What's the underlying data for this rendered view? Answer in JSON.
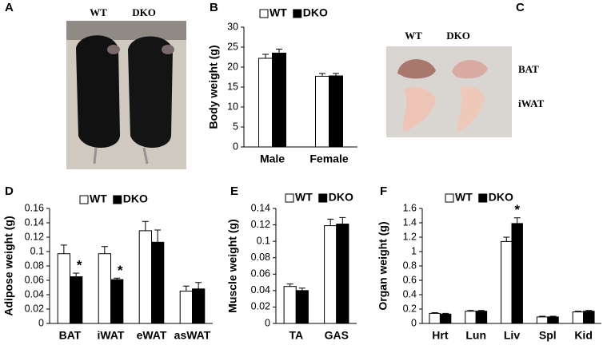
{
  "panel_A": {
    "label": "A",
    "column_labels": [
      "WT",
      "DKO"
    ]
  },
  "panel_C": {
    "label": "C",
    "column_labels": [
      "WT",
      "DKO"
    ],
    "row_labels": [
      "BAT",
      "iWAT"
    ]
  },
  "chart_data": [
    {
      "type": "bar",
      "panel": "B",
      "ylabel": "Body weight (g)",
      "categories": [
        "Male",
        "Female"
      ],
      "series": [
        {
          "name": "WT",
          "color": "#ffffff",
          "values": [
            22.2,
            17.7
          ],
          "errors": [
            1.0,
            0.7
          ]
        },
        {
          "name": "DKO",
          "color": "#000000",
          "values": [
            23.5,
            17.8
          ],
          "errors": [
            1.0,
            0.6
          ]
        }
      ],
      "ylim": [
        0,
        30
      ],
      "yticks": [
        0,
        5,
        10,
        15,
        20,
        25,
        30
      ],
      "annotations": []
    },
    {
      "type": "bar",
      "panel": "D",
      "ylabel": "Adipose weight (g)",
      "categories": [
        "BAT",
        "iWAT",
        "eWAT",
        "asWAT"
      ],
      "series": [
        {
          "name": "WT",
          "color": "#ffffff",
          "values": [
            0.097,
            0.097,
            0.129,
            0.045
          ],
          "errors": [
            0.012,
            0.01,
            0.013,
            0.007
          ]
        },
        {
          "name": "DKO",
          "color": "#000000",
          "values": [
            0.065,
            0.061,
            0.113,
            0.048
          ],
          "errors": [
            0.005,
            0.002,
            0.017,
            0.009
          ]
        }
      ],
      "ylim": [
        0,
        0.16
      ],
      "yticks": [
        0,
        0.02,
        0.04,
        0.06,
        0.08,
        0.1,
        0.12,
        0.14,
        0.16
      ],
      "annotations": [
        {
          "text": "*",
          "category": "BAT",
          "series": "DKO"
        },
        {
          "text": "*",
          "category": "iWAT",
          "series": "DKO"
        }
      ]
    },
    {
      "type": "bar",
      "panel": "E",
      "ylabel": "Muscle weight (g)",
      "categories": [
        "TA",
        "GAS"
      ],
      "series": [
        {
          "name": "WT",
          "color": "#ffffff",
          "values": [
            0.045,
            0.119
          ],
          "errors": [
            0.003,
            0.008
          ]
        },
        {
          "name": "DKO",
          "color": "#000000",
          "values": [
            0.04,
            0.121
          ],
          "errors": [
            0.003,
            0.008
          ]
        }
      ],
      "ylim": [
        0,
        0.14
      ],
      "yticks": [
        0,
        0.02,
        0.04,
        0.06,
        0.08,
        0.1,
        0.12,
        0.14
      ],
      "annotations": []
    },
    {
      "type": "bar",
      "panel": "F",
      "ylabel": "Organ weight (g)",
      "categories": [
        "Hrt",
        "Lun",
        "Liv",
        "Spl",
        "Kid"
      ],
      "series": [
        {
          "name": "WT",
          "color": "#ffffff",
          "values": [
            0.14,
            0.17,
            1.14,
            0.09,
            0.16
          ],
          "errors": [
            0.01,
            0.01,
            0.06,
            0.01,
            0.01
          ]
        },
        {
          "name": "DKO",
          "color": "#000000",
          "values": [
            0.13,
            0.17,
            1.39,
            0.09,
            0.17
          ],
          "errors": [
            0.01,
            0.01,
            0.08,
            0.01,
            0.01
          ]
        }
      ],
      "ylim": [
        0,
        1.6
      ],
      "yticks": [
        0,
        0.2,
        0.4,
        0.6,
        0.8,
        1,
        1.2,
        1.4,
        1.6
      ],
      "annotations": [
        {
          "text": "*",
          "category": "Liv",
          "series": "DKO"
        }
      ]
    }
  ]
}
